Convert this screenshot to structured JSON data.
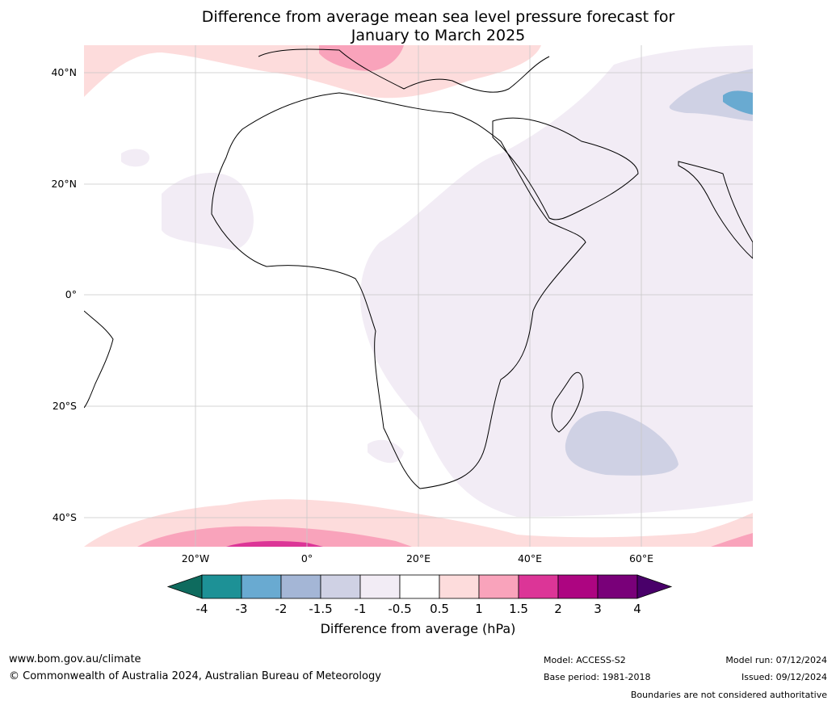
{
  "title_line1": "Difference from average mean sea level pressure forecast for",
  "title_line2": "January to March 2025",
  "lat_labels": [
    "40°N",
    "20°N",
    "0°",
    "20°S",
    "40°S"
  ],
  "lon_labels": [
    "20°W",
    "0°",
    "20°E",
    "40°E",
    "60°E"
  ],
  "colorbar": {
    "ticks": [
      "-4",
      "-3",
      "-2",
      "-1.5",
      "-1",
      "-0.5",
      "0.5",
      "1",
      "1.5",
      "2",
      "3",
      "4"
    ],
    "colors": [
      "#0e6b5e",
      "#1d9196",
      "#69aad1",
      "#a4b6d6",
      "#cfd1e4",
      "#f2ecf5",
      "#ffffff",
      "#fddcdc",
      "#f9a3bb",
      "#dc3597",
      "#ad0581",
      "#790079",
      "#49006a"
    ],
    "label": "Difference from average (hPa)"
  },
  "footer": {
    "website": "www.bom.gov.au/climate",
    "copyright": "© Commonwealth of Australia 2024, Australian Bureau of Meteorology",
    "model": "Model: ACCESS-S2",
    "base_period": "Base period: 1981-2018",
    "model_run": "Model run: 07/12/2024",
    "issued": "Issued: 09/12/2024",
    "disclaimer": "Boundaries are not considered authoritative"
  }
}
